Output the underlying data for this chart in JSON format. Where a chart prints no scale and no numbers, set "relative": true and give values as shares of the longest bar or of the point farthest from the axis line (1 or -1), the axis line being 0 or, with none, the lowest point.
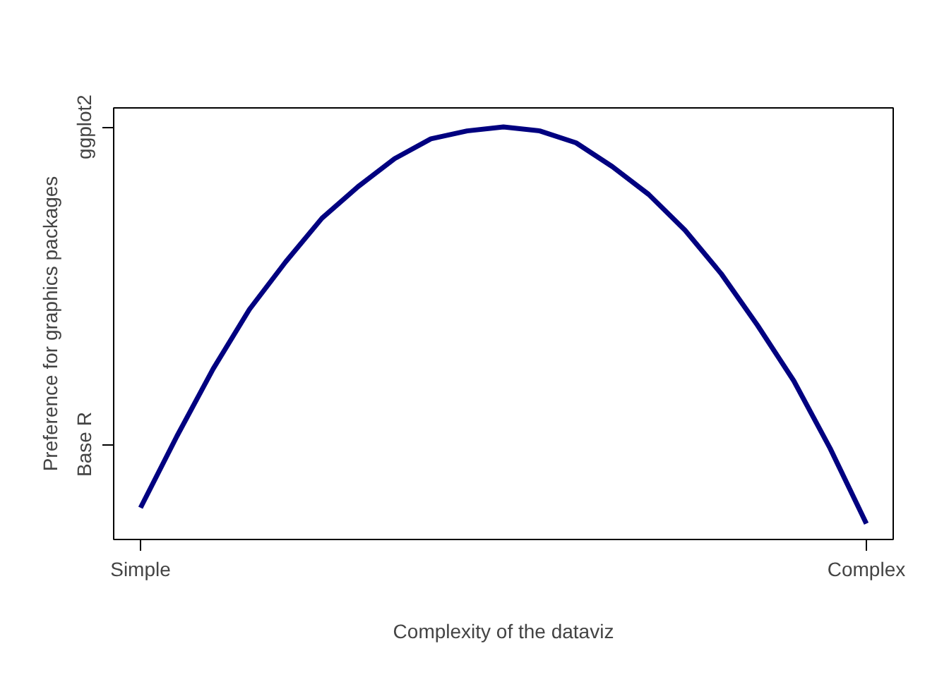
{
  "chart_data": {
    "type": "line",
    "xlabel": "Complexity of the dataviz",
    "ylabel": "Preference for graphics packages",
    "relative": true,
    "categories": [
      "Simple",
      null,
      null,
      null,
      null,
      null,
      null,
      null,
      null,
      null,
      null,
      null,
      null,
      null,
      null,
      null,
      null,
      null,
      null,
      null,
      "Complex"
    ],
    "series": [
      {
        "color": "#000080",
        "values": [
          0.04,
          0.22,
          0.39,
          0.54,
          0.66,
          0.77,
          0.85,
          0.92,
          0.97,
          0.99,
          1.0,
          0.99,
          0.96,
          0.9,
          0.83,
          0.74,
          0.63,
          0.5,
          0.36,
          0.19,
          0.0
        ]
      }
    ],
    "annotations": [
      "Base R",
      "ggplot2"
    ],
    "grid": false,
    "marker": "none",
    "line_style": "solid"
  }
}
